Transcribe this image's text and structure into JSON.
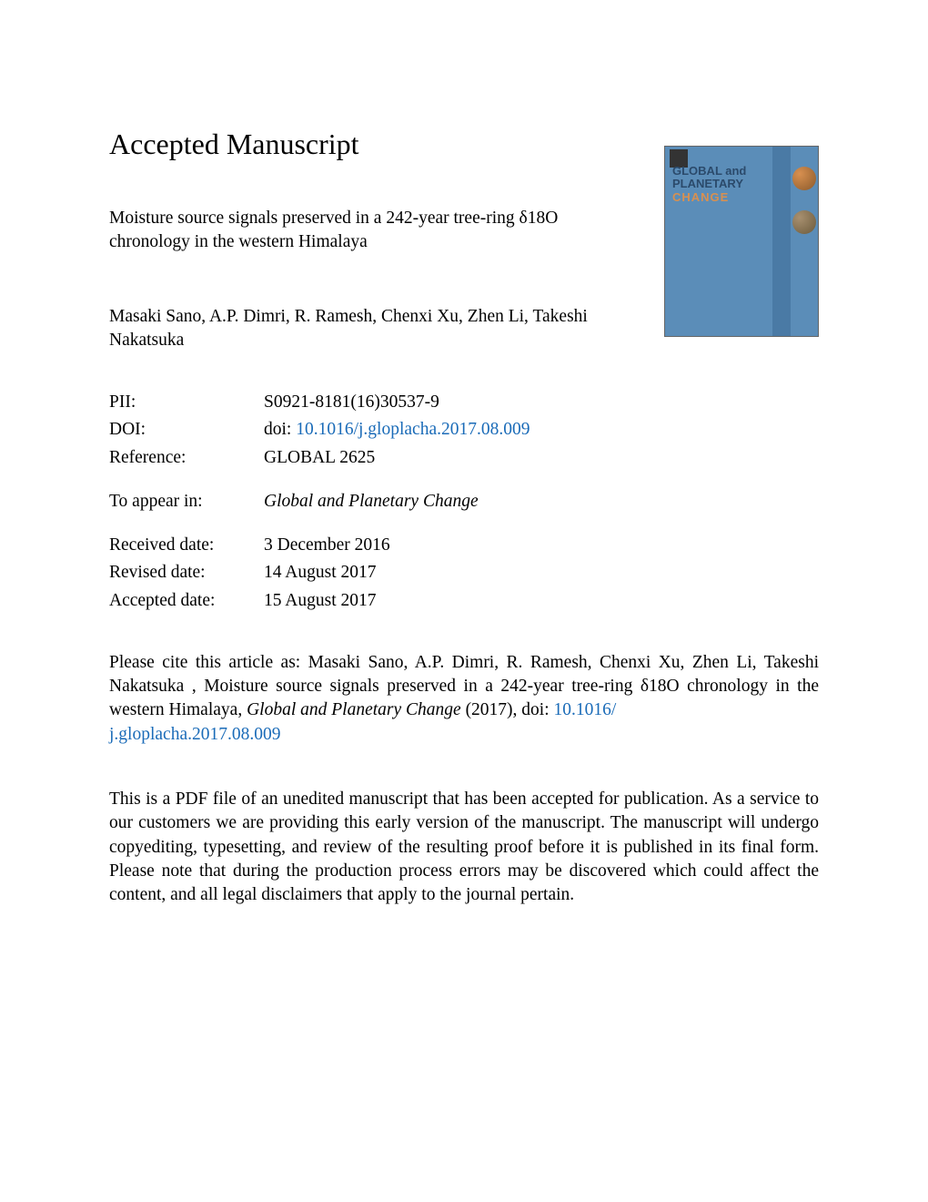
{
  "heading": "Accepted Manuscript",
  "article_title": "Moisture source signals preserved in a 242-year tree-ring δ18O chronology in the western Himalaya",
  "authors": "Masaki Sano, A.P. Dimri, R. Ramesh, Chenxi Xu, Zhen Li, Takeshi Nakatsuka",
  "meta": {
    "pii_label": "PII:",
    "pii_value": "S0921-8181(16)30537-9",
    "doi_label": "DOI:",
    "doi_prefix": "doi: ",
    "doi_link": "10.1016/j.gloplacha.2017.08.009",
    "reference_label": "Reference:",
    "reference_value": "GLOBAL 2625",
    "appear_label": "To appear in:",
    "appear_value": "Global and Planetary Change",
    "received_label": "Received date:",
    "received_value": "3 December 2016",
    "revised_label": "Revised date:",
    "revised_value": "14 August 2017",
    "accepted_label": "Accepted date:",
    "accepted_value": "15 August 2017"
  },
  "cite": {
    "prefix": "Please cite this article as: Masaki Sano, A.P. Dimri, R. Ramesh, Chenxi Xu, Zhen Li, Takeshi Nakatsuka , Moisture source signals preserved in a 242-year tree-ring δ18O chronology in the western Himalaya, ",
    "journal": "Global and Planetary Change",
    "year": " (2017), doi: ",
    "link1": "10.1016/",
    "link2": "j.gloplacha.2017.08.009"
  },
  "disclaimer": "This is a PDF file of an unedited manuscript that has been accepted for publication. As a service to our customers we are providing this early version of the manuscript. The manuscript will undergo copyediting, typesetting, and review of the resulting proof before it is published in its final form. Please note that during the production process errors may be discovered which could affect the content, and all legal disclaimers that apply to the journal pertain.",
  "cover": {
    "line1": "GLOBAL and",
    "line2_a": "PLANETARY",
    "line2_b": "CHANGE",
    "background_color": "#5b8db8",
    "stripe_color": "#4a7aa5"
  },
  "colors": {
    "link": "#1a6bb8",
    "text": "#000000",
    "background": "#ffffff"
  },
  "typography": {
    "heading_fontsize": 32,
    "body_fontsize": 19.5,
    "font_family": "Times New Roman"
  }
}
